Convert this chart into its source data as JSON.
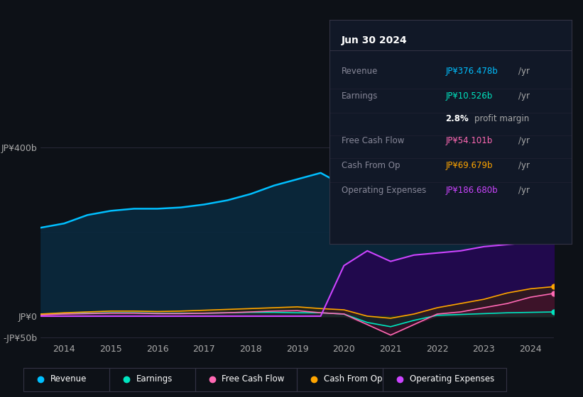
{
  "background_color": "#0d1117",
  "plot_bg_color": "#0d1117",
  "title": "Jun 30 2024",
  "info_box_rows": [
    {
      "label": "Revenue",
      "value": "JP¥376.478b /yr",
      "color": "#00bfff"
    },
    {
      "label": "Earnings",
      "value": "JP¥10.526b /yr",
      "color": "#00e5c0"
    },
    {
      "label": "",
      "value": "2.8% profit margin",
      "color": "#ffffff"
    },
    {
      "label": "Free Cash Flow",
      "value": "JP¥54.101b /yr",
      "color": "#ff69b4"
    },
    {
      "label": "Cash From Op",
      "value": "JP¥69.679b /yr",
      "color": "#ffa500"
    },
    {
      "label": "Operating Expenses",
      "value": "JP¥186.680b /yr",
      "color": "#cc44ff"
    }
  ],
  "years": [
    2013.5,
    2014.0,
    2014.5,
    2015.0,
    2015.5,
    2016.0,
    2016.5,
    2017.0,
    2017.5,
    2018.0,
    2018.5,
    2019.0,
    2019.5,
    2020.0,
    2020.5,
    2021.0,
    2021.5,
    2022.0,
    2022.5,
    2023.0,
    2023.5,
    2024.0,
    2024.5
  ],
  "revenue": [
    210,
    220,
    240,
    250,
    255,
    255,
    258,
    265,
    275,
    290,
    310,
    325,
    340,
    310,
    265,
    230,
    255,
    285,
    305,
    320,
    340,
    365,
    380
  ],
  "earnings": [
    5,
    6,
    7,
    8,
    8,
    7,
    7,
    7,
    8,
    9,
    9,
    8,
    8,
    5,
    -15,
    -25,
    -10,
    2,
    4,
    6,
    8,
    9,
    10
  ],
  "free_cash_flow": [
    3,
    5,
    6,
    7,
    7,
    6,
    6,
    7,
    8,
    10,
    12,
    13,
    8,
    5,
    -20,
    -45,
    -20,
    5,
    10,
    20,
    30,
    45,
    54
  ],
  "cash_from_op": [
    5,
    8,
    10,
    12,
    12,
    11,
    12,
    14,
    16,
    18,
    20,
    22,
    18,
    15,
    0,
    -5,
    5,
    20,
    30,
    40,
    55,
    65,
    70
  ],
  "op_expenses": [
    0,
    0,
    0,
    0,
    0,
    0,
    0,
    0,
    0,
    0,
    0,
    0,
    0,
    120,
    155,
    130,
    145,
    150,
    155,
    165,
    170,
    175,
    186
  ],
  "colors": {
    "revenue": "#00bfff",
    "earnings": "#00e5c0",
    "free_cash_flow": "#ff69b4",
    "cash_from_op": "#ffa500",
    "op_expenses": "#cc44ff"
  },
  "ylim": [
    -60,
    430
  ],
  "yticks": [
    -50,
    0,
    400
  ],
  "ytick_labels": [
    "-JP¥50b",
    "JP¥0",
    "JP¥400b"
  ],
  "xticks": [
    2014,
    2015,
    2016,
    2017,
    2018,
    2019,
    2020,
    2021,
    2022,
    2023,
    2024
  ],
  "legend": [
    {
      "label": "Revenue",
      "color": "#00bfff"
    },
    {
      "label": "Earnings",
      "color": "#00e5c0"
    },
    {
      "label": "Free Cash Flow",
      "color": "#ff69b4"
    },
    {
      "label": "Cash From Op",
      "color": "#ffa500"
    },
    {
      "label": "Operating Expenses",
      "color": "#cc44ff"
    }
  ]
}
